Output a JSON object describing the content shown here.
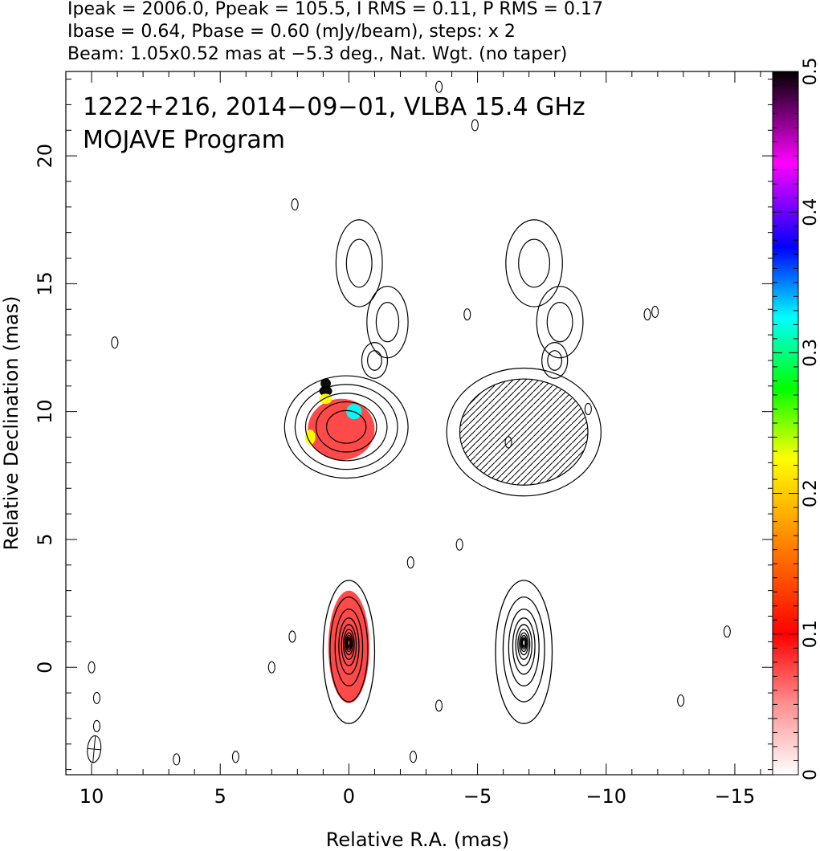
{
  "chart_data": {
    "type": "contour",
    "header_lines": [
      "Ipeak = 2006.0, Ppeak = 105.5, I RMS = 0.11, P RMS = 0.17",
      "Ibase = 0.64, Pbase = 0.60 (mJy/beam), steps: x 2",
      "Beam: 1.05x0.52 mas at −5.3 deg., Nat. Wgt. (no taper)"
    ],
    "annotation_lines": [
      "1222+216, 2014−09−01, VLBA 15.4 GHz",
      "MOJAVE Program"
    ],
    "xlabel": "Relative R.A. (mas)",
    "ylabel": "Relative Declination (mas)",
    "xlim": [
      11,
      -16.5
    ],
    "ylim": [
      -4.2,
      23.3
    ],
    "x_ticks": [
      10,
      5,
      0,
      -5,
      -10,
      -15
    ],
    "x_tick_labels": [
      "10",
      "5",
      "0",
      "−5",
      "−10",
      "−15"
    ],
    "y_ticks": [
      0,
      5,
      10,
      15,
      20
    ],
    "y_tick_labels": [
      "0",
      "5",
      "10",
      "15",
      "20"
    ],
    "colorbar": {
      "range": [
        0,
        0.5
      ],
      "ticks": [
        0,
        0.1,
        0.2,
        0.3,
        0.4,
        0.5
      ],
      "tick_labels": [
        "0",
        "0.1",
        "0.2",
        "0.3",
        "0.4",
        "0.5"
      ],
      "colors": [
        "#ffffff",
        "#ff4040",
        "#ff9a00",
        "#ffff00",
        "#00ff00",
        "#00ffff",
        "#0000ff",
        "#ff00ff",
        "#000000"
      ]
    },
    "panels": [
      {
        "name": "total-intensity-polarization",
        "core": {
          "x": 0,
          "y": 0.6,
          "sx": 1.0,
          "sy": 2.8
        },
        "core_levels": 11,
        "knot": {
          "x": 0.1,
          "y": 9.4,
          "sx": 2.4,
          "sy": 2.0
        },
        "knot_levels": 5,
        "frac_pol": [
          {
            "x": 0.0,
            "y": 0.8,
            "sx": 0.8,
            "sy": 2.2,
            "value": 0.1
          },
          {
            "x": 0.3,
            "y": 9.3,
            "sx": 1.3,
            "sy": 1.2,
            "value": 0.06
          },
          {
            "x": -0.2,
            "y": 10.0,
            "sx": 0.3,
            "sy": 0.3,
            "value": 0.3
          },
          {
            "x": 0.9,
            "y": 11.1,
            "sx": 0.2,
            "sy": 0.2,
            "value": 0.5
          },
          {
            "x": 0.9,
            "y": 10.8,
            "sx": 0.25,
            "sy": 0.2,
            "value": 0.45
          },
          {
            "x": 0.9,
            "y": 10.5,
            "sx": 0.25,
            "sy": 0.2,
            "value": 0.2
          },
          {
            "x": 1.5,
            "y": 9.0,
            "sx": 0.2,
            "sy": 0.3,
            "value": 0.18
          }
        ]
      },
      {
        "name": "polarized-intensity",
        "core": {
          "x": -6.8,
          "y": 0.6,
          "sx": 1.1,
          "sy": 2.8
        },
        "core_levels": 11,
        "knot": {
          "x": -6.8,
          "y": 9.2,
          "sx": 3.0,
          "sy": 2.5
        },
        "knot_levels": 2
      }
    ],
    "faint_islands": [
      {
        "x": -0.4,
        "y": 15.8,
        "sx": 0.9,
        "sy": 1.7
      },
      {
        "x": -1.5,
        "y": 13.5,
        "sx": 0.8,
        "sy": 1.4
      },
      {
        "x": -1.0,
        "y": 12.0,
        "sx": 0.5,
        "sy": 0.7
      },
      {
        "x": -7.2,
        "y": 15.8,
        "sx": 1.1,
        "sy": 1.7
      },
      {
        "x": -8.2,
        "y": 13.5,
        "sx": 0.9,
        "sy": 1.4
      },
      {
        "x": -8.0,
        "y": 12.0,
        "sx": 0.5,
        "sy": 0.7
      }
    ],
    "small_specks": [
      {
        "x": 2.1,
        "y": 18.1
      },
      {
        "x": 9.1,
        "y": 12.7
      },
      {
        "x": 9.8,
        "y": -1.2
      },
      {
        "x": 9.8,
        "y": -2.3
      },
      {
        "x": 10.0,
        "y": 0.0
      },
      {
        "x": 3.0,
        "y": 0.0
      },
      {
        "x": 2.2,
        "y": 1.2
      },
      {
        "x": -2.4,
        "y": 4.1
      },
      {
        "x": -4.3,
        "y": 4.8
      },
      {
        "x": -3.5,
        "y": -1.5
      },
      {
        "x": 6.7,
        "y": -3.6
      },
      {
        "x": 4.4,
        "y": -3.5
      },
      {
        "x": -2.5,
        "y": -3.5
      },
      {
        "x": -4.6,
        "y": 13.8
      },
      {
        "x": -11.6,
        "y": 13.8
      },
      {
        "x": -11.9,
        "y": 13.9
      },
      {
        "x": -14.7,
        "y": 1.4
      },
      {
        "x": -12.9,
        "y": -1.3
      },
      {
        "x": -3.5,
        "y": 22.7
      },
      {
        "x": -4.9,
        "y": 21.2
      },
      {
        "x": -6.2,
        "y": 8.8
      },
      {
        "x": -9.3,
        "y": 10.1
      }
    ],
    "beam": {
      "x": 9.9,
      "y": -3.2,
      "major": 1.05,
      "minor": 0.52,
      "pa": -5.3
    }
  }
}
